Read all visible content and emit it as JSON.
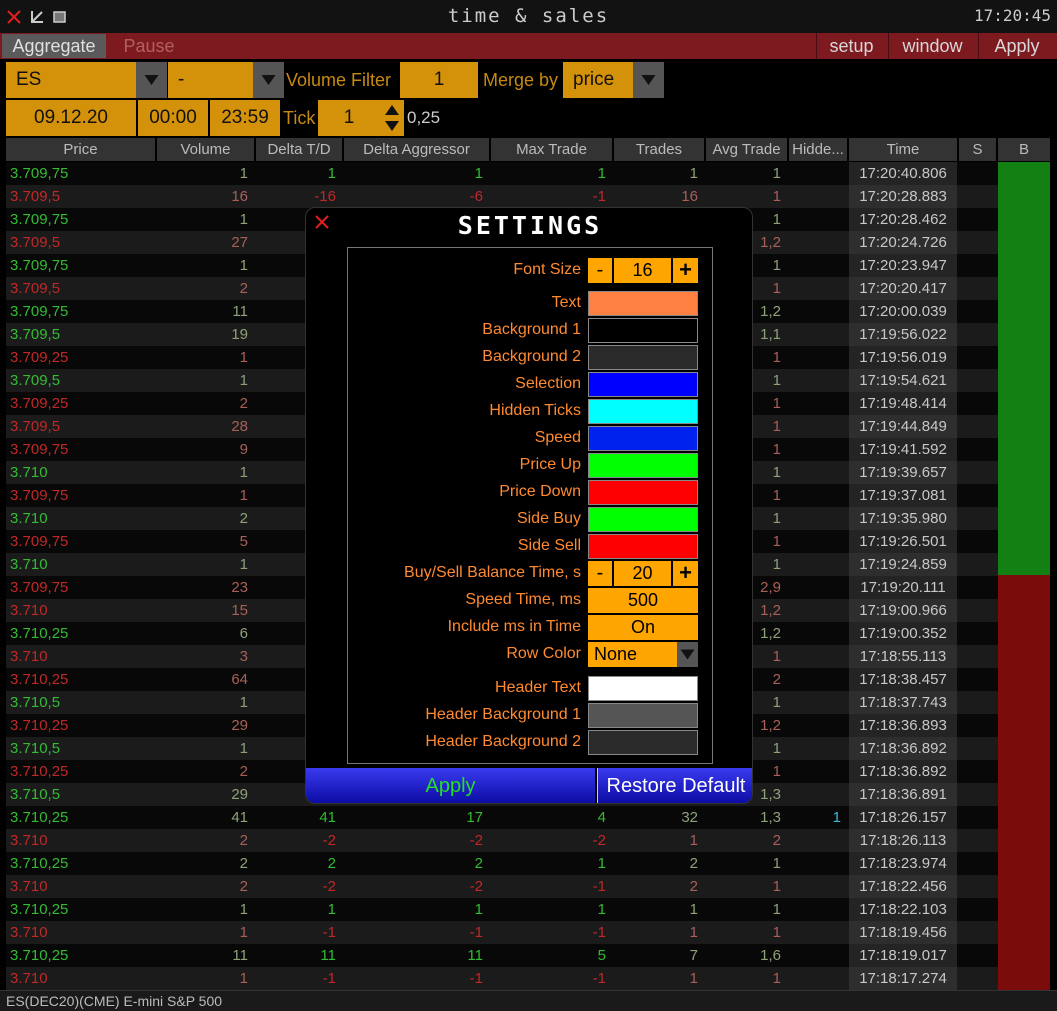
{
  "window": {
    "title": "time & sales",
    "clock": "17:20:45"
  },
  "toolbar": {
    "left": [
      "Aggregate",
      "Pause"
    ],
    "right": [
      "setup",
      "window",
      "Apply"
    ]
  },
  "controls": {
    "symbol": "ES",
    "account": "-",
    "volume_filter_label": "Volume Filter",
    "volume_filter": "1",
    "merge_by_label": "Merge by",
    "merge_by": "price",
    "date": "09.12.20",
    "start": "00:00",
    "end": "23:59",
    "tick_label": "Tick",
    "tick": "1",
    "tick_size": "0,25"
  },
  "table": {
    "columns": [
      "Price",
      "Volume",
      "Delta T/D",
      "Delta Aggressor",
      "Max Trade",
      "Trades",
      "Avg Trade",
      "Hidde...",
      "Time",
      "S",
      "B"
    ],
    "rows": [
      {
        "side": "buy",
        "cells": [
          "3.709,75",
          "1",
          "1",
          "1",
          "1",
          "1",
          "1",
          null,
          "17:20:40.806"
        ]
      },
      {
        "side": "sell",
        "cells": [
          "3.709,5",
          "16",
          "-16",
          "-6",
          "-1",
          "16",
          "1",
          null,
          "17:20:28.883"
        ]
      },
      {
        "side": "buy",
        "cells": [
          "3.709,75",
          "1",
          null,
          null,
          null,
          null,
          "1",
          null,
          "17:20:28.462"
        ]
      },
      {
        "side": "sell",
        "cells": [
          "3.709,5",
          "27",
          null,
          null,
          null,
          null,
          "1,2",
          null,
          "17:20:24.726"
        ]
      },
      {
        "side": "buy",
        "cells": [
          "3.709,75",
          "1",
          null,
          null,
          null,
          null,
          "1",
          null,
          "17:20:23.947"
        ]
      },
      {
        "side": "sell",
        "cells": [
          "3.709,5",
          "2",
          null,
          null,
          null,
          null,
          "1",
          null,
          "17:20:20.417"
        ]
      },
      {
        "side": "buy",
        "cells": [
          "3.709,75",
          "11",
          null,
          null,
          null,
          null,
          "1,2",
          null,
          "17:20:00.039"
        ]
      },
      {
        "side": "buy",
        "cells": [
          "3.709,5",
          "19",
          null,
          null,
          null,
          null,
          "1,1",
          null,
          "17:19:56.022"
        ]
      },
      {
        "side": "sell",
        "cells": [
          "3.709,25",
          "1",
          null,
          null,
          null,
          null,
          "1",
          null,
          "17:19:56.019"
        ]
      },
      {
        "side": "buy",
        "cells": [
          "3.709,5",
          "1",
          null,
          null,
          null,
          null,
          "1",
          null,
          "17:19:54.621"
        ]
      },
      {
        "side": "sell",
        "cells": [
          "3.709,25",
          "2",
          null,
          null,
          null,
          null,
          "1",
          null,
          "17:19:48.414"
        ]
      },
      {
        "side": "sell",
        "cells": [
          "3.709,5",
          "28",
          null,
          null,
          null,
          null,
          "1",
          null,
          "17:19:44.849"
        ]
      },
      {
        "side": "sell",
        "cells": [
          "3.709,75",
          "9",
          null,
          null,
          null,
          null,
          "1",
          null,
          "17:19:41.592"
        ]
      },
      {
        "side": "buy",
        "cells": [
          "3.710",
          "1",
          null,
          null,
          null,
          null,
          "1",
          null,
          "17:19:39.657"
        ]
      },
      {
        "side": "sell",
        "cells": [
          "3.709,75",
          "1",
          null,
          null,
          null,
          null,
          "1",
          null,
          "17:19:37.081"
        ]
      },
      {
        "side": "buy",
        "cells": [
          "3.710",
          "2",
          null,
          null,
          null,
          null,
          "1",
          null,
          "17:19:35.980"
        ]
      },
      {
        "side": "sell",
        "cells": [
          "3.709,75",
          "5",
          null,
          null,
          null,
          null,
          "1",
          null,
          "17:19:26.501"
        ]
      },
      {
        "side": "buy",
        "cells": [
          "3.710",
          "1",
          null,
          null,
          null,
          null,
          "1",
          null,
          "17:19:24.859"
        ]
      },
      {
        "side": "sell",
        "cells": [
          "3.709,75",
          "23",
          null,
          null,
          null,
          null,
          "2,9",
          null,
          "17:19:20.111"
        ]
      },
      {
        "side": "sell",
        "cells": [
          "3.710",
          "15",
          null,
          null,
          null,
          null,
          "1,2",
          null,
          "17:19:00.966"
        ]
      },
      {
        "side": "buy",
        "cells": [
          "3.710,25",
          "6",
          null,
          null,
          null,
          null,
          "1,2",
          null,
          "17:19:00.352"
        ]
      },
      {
        "side": "sell",
        "cells": [
          "3.710",
          "3",
          null,
          null,
          null,
          null,
          "1",
          null,
          "17:18:55.113"
        ]
      },
      {
        "side": "sell",
        "cells": [
          "3.710,25",
          "64",
          null,
          null,
          null,
          null,
          "2",
          null,
          "17:18:38.457"
        ]
      },
      {
        "side": "buy",
        "cells": [
          "3.710,5",
          "1",
          null,
          null,
          null,
          null,
          "1",
          null,
          "17:18:37.743"
        ]
      },
      {
        "side": "sell",
        "cells": [
          "3.710,25",
          "29",
          null,
          null,
          null,
          null,
          "1,2",
          null,
          "17:18:36.893"
        ]
      },
      {
        "side": "buy",
        "cells": [
          "3.710,5",
          "1",
          null,
          null,
          null,
          null,
          "1",
          null,
          "17:18:36.892"
        ]
      },
      {
        "side": "sell",
        "cells": [
          "3.710,25",
          "2",
          null,
          null,
          null,
          null,
          "1",
          null,
          "17:18:36.892"
        ]
      },
      {
        "side": "buy",
        "cells": [
          "3.710,5",
          "29",
          null,
          null,
          null,
          null,
          "1,3",
          null,
          "17:18:36.891"
        ]
      },
      {
        "side": "buy",
        "cells": [
          "3.710,25",
          "41",
          "41",
          "17",
          "4",
          "32",
          "1,3",
          "1",
          "17:18:26.157"
        ]
      },
      {
        "side": "sell",
        "cells": [
          "3.710",
          "2",
          "-2",
          "-2",
          "-2",
          "1",
          "2",
          null,
          "17:18:26.113"
        ]
      },
      {
        "side": "buy",
        "cells": [
          "3.710,25",
          "2",
          "2",
          "2",
          "1",
          "2",
          "1",
          null,
          "17:18:23.974"
        ]
      },
      {
        "side": "sell",
        "cells": [
          "3.710",
          "2",
          "-2",
          "-2",
          "-1",
          "2",
          "1",
          null,
          "17:18:22.456"
        ]
      },
      {
        "side": "buy",
        "cells": [
          "3.710,25",
          "1",
          "1",
          "1",
          "1",
          "1",
          "1",
          null,
          "17:18:22.103"
        ]
      },
      {
        "side": "sell",
        "cells": [
          "3.710",
          "1",
          "-1",
          "-1",
          "-1",
          "1",
          "1",
          null,
          "17:18:19.456"
        ]
      },
      {
        "side": "buy",
        "cells": [
          "3.710,25",
          "11",
          "11",
          "11",
          "5",
          "7",
          "1,6",
          null,
          "17:18:19.017"
        ]
      },
      {
        "side": "sell",
        "cells": [
          "3.710",
          "1",
          "-1",
          "-1",
          "-1",
          "1",
          "1",
          null,
          "17:18:17.274"
        ]
      }
    ]
  },
  "settings": {
    "title": "SETTINGS",
    "minus": "-",
    "plus": "+",
    "items": [
      {
        "label": "Font Size",
        "kind": "stepper",
        "value": "16"
      },
      {
        "label": "Text",
        "kind": "color",
        "color": "#ff8040"
      },
      {
        "label": "Background 1",
        "kind": "color",
        "color": "#000000"
      },
      {
        "label": "Background 2",
        "kind": "color",
        "color": "#2a2a2a"
      },
      {
        "label": "Selection",
        "kind": "color",
        "color": "#0000ff"
      },
      {
        "label": "Hidden Ticks",
        "kind": "color",
        "color": "#00ffff"
      },
      {
        "label": "Speed",
        "kind": "color",
        "color": "#0022ee"
      },
      {
        "label": "Price Up",
        "kind": "color",
        "color": "#00ff00"
      },
      {
        "label": "Price Down",
        "kind": "color",
        "color": "#ff0000"
      },
      {
        "label": "Side Buy",
        "kind": "color",
        "color": "#00ff00"
      },
      {
        "label": "Side Sell",
        "kind": "color",
        "color": "#ff0000"
      },
      {
        "label": "Buy/Sell Balance Time, s",
        "kind": "stepper",
        "value": "20"
      },
      {
        "label": "Speed Time, ms",
        "kind": "field",
        "value": "500"
      },
      {
        "label": "Include ms in Time",
        "kind": "field",
        "value": "On"
      },
      {
        "label": "Row Color",
        "kind": "dropdown",
        "value": "None"
      },
      {
        "label": "Header Text",
        "kind": "color",
        "color": "#ffffff"
      },
      {
        "label": "Header Background 1",
        "kind": "color",
        "color": "#555555"
      },
      {
        "label": "Header Background 2",
        "kind": "color",
        "color": "#2a2a2a"
      }
    ],
    "buttons": [
      "Apply",
      "Restore Default"
    ]
  },
  "status": "ES(DEC20)(CME) E-mini S&P 500"
}
